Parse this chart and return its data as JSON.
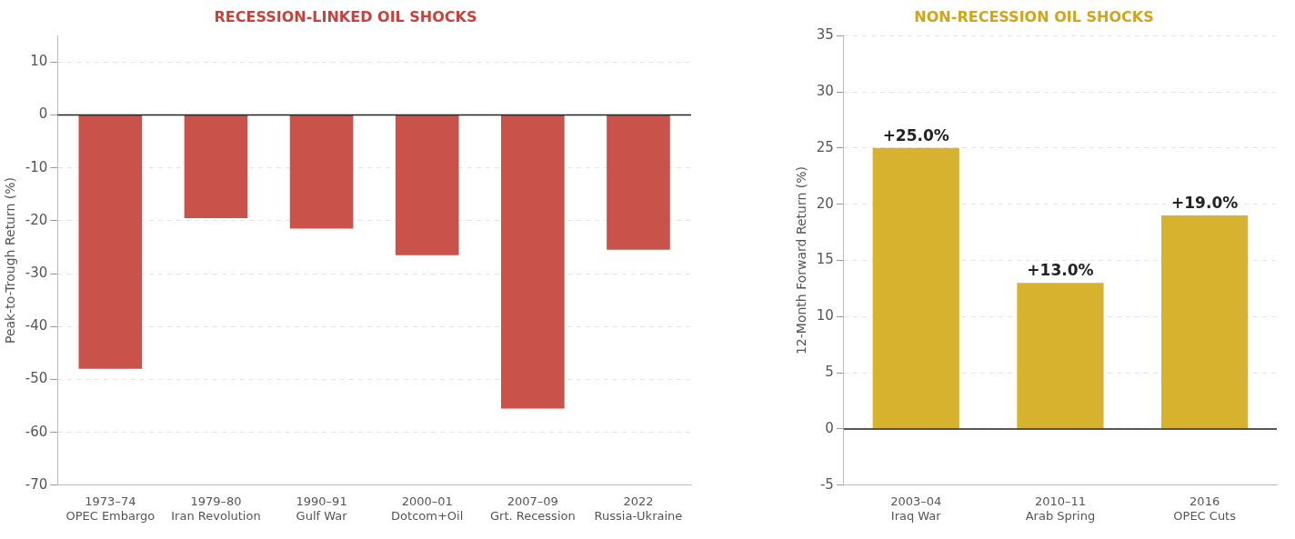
{
  "chart_data": [
    {
      "type": "bar",
      "title": "RECESSION-LINKED OIL SHOCKS",
      "ylabel": "Peak-to-Trough Return (%)",
      "categories": [
        "1973–74\nOPEC Embargo",
        "1979–80\nIran Revolution",
        "1990–91\nGulf War",
        "2000–01\nDotcom+Oil",
        "2007–09\nGrt. Recession",
        "2022\nRussia-Ukraine"
      ],
      "values": [
        -48,
        -19.5,
        -21.5,
        -26.5,
        -55.5,
        -25.5
      ],
      "color": "#c9534a",
      "ylim": [
        -70,
        15
      ],
      "yticks": [
        -70,
        -60,
        -50,
        -40,
        -30,
        -20,
        -10,
        0,
        10
      ],
      "grid": "y",
      "legend": false,
      "ref_lines": [
        {
          "axis": "y",
          "value": 0,
          "color": "#222222"
        }
      ]
    },
    {
      "type": "bar",
      "title": "NON-RECESSION OIL SHOCKS",
      "ylabel": "12-Month Forward Return (%)",
      "categories": [
        "2003–04\nIraq War",
        "2010–11\nArab Spring",
        "2016\nOPEC Cuts"
      ],
      "values": [
        25,
        13,
        19
      ],
      "value_labels": [
        "+25.0%",
        "+13.0%",
        "+19.0%"
      ],
      "color": "#d6b22f",
      "ylim": [
        -5,
        35
      ],
      "yticks": [
        -5,
        0,
        5,
        10,
        15,
        20,
        25,
        30,
        35
      ],
      "grid": "y",
      "legend": false,
      "ref_lines": [
        {
          "axis": "y",
          "value": 0,
          "color": "#222222"
        }
      ]
    }
  ]
}
